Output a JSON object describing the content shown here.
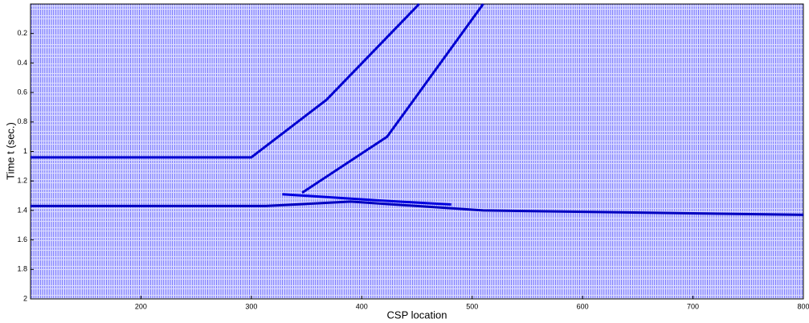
{
  "chart_data": {
    "type": "wiggle",
    "xlabel": "CSP location",
    "ylabel": "Time  t  (sec.)",
    "xlim": [
      100,
      800
    ],
    "xticks": [
      200,
      300,
      400,
      500,
      600,
      700,
      800
    ],
    "ylim": [
      0,
      2
    ],
    "yticks": [
      0.2,
      0.4,
      0.6,
      0.8,
      1,
      1.2,
      1.4,
      1.6,
      1.8,
      2
    ],
    "y_reversed": true,
    "grid": false,
    "series": [
      {
        "color": "#0000d0",
        "x": [
          100,
          300,
          368,
          452
        ],
        "values": [
          1.04,
          1.04,
          0.65,
          0
        ]
      },
      {
        "color": "#0000d0",
        "x": [
          346,
          423,
          481,
          510
        ],
        "values": [
          1.28,
          0.9,
          0.3,
          0
        ]
      },
      {
        "color": "#0000c0",
        "x": [
          100,
          313,
          390,
          510,
          800
        ],
        "values": [
          1.37,
          1.37,
          1.34,
          1.4,
          1.43
        ]
      },
      {
        "color": "#0000e0",
        "x": [
          328,
          410,
          481
        ],
        "values": [
          1.29,
          1.33,
          1.36
        ]
      }
    ]
  }
}
